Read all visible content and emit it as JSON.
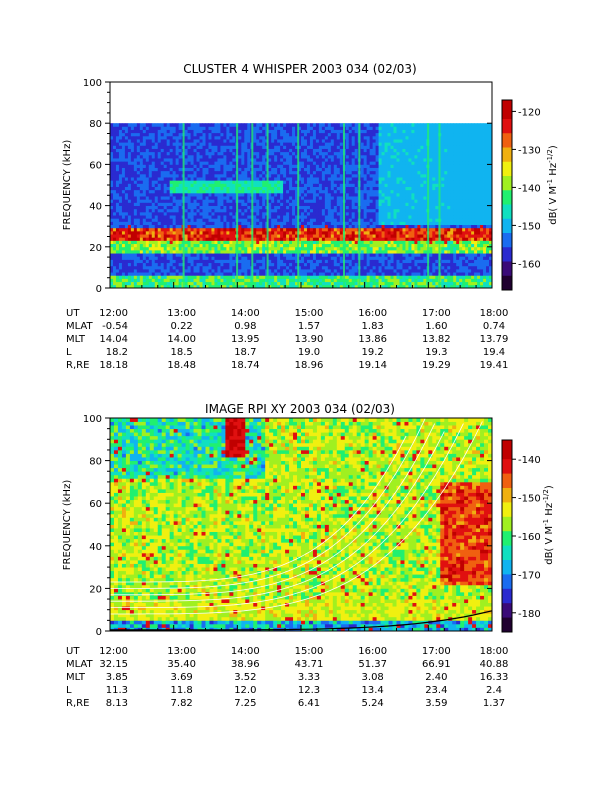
{
  "chart_data": [
    {
      "type": "heatmap",
      "title": "CLUSTER 4 WHISPER 2003 034 (02/03)",
      "ylabel": "FREQUENCY (kHz)",
      "colorbar_label": "dB( V M⁻¹ Hz⁻¹ᐟ²)",
      "colorbar_label_parts": [
        "dB( V M",
        "-1",
        " Hz",
        "-1/2",
        ")"
      ],
      "ylim": [
        0,
        100
      ],
      "y_ticks": [
        "0",
        "20",
        "40",
        "60",
        "80",
        "100"
      ],
      "data_max_frequency_khz": 80,
      "colorbar_ticks": [
        "-120",
        "-130",
        "-140",
        "-150",
        "-160"
      ],
      "colorbar_range": [
        -167,
        -117
      ],
      "features": {
        "plasma_line_khz": 26,
        "upper_band_khz": [
          48,
          52
        ]
      },
      "ephemeris_headers": [
        "UT",
        "MLAT",
        "MLT",
        "L",
        "R,RE"
      ],
      "ephemeris": {
        "UT": [
          "12:00",
          "13:00",
          "14:00",
          "15:00",
          "16:00",
          "17:00",
          "18:00"
        ],
        "MLAT": [
          "-0.54",
          "0.22",
          "0.98",
          "1.57",
          "1.83",
          "1.60",
          "0.74"
        ],
        "MLT": [
          "14.04",
          "14.00",
          "13.95",
          "13.90",
          "13.86",
          "13.82",
          "13.79"
        ],
        "L": [
          "18.2",
          "18.5",
          "18.7",
          "19.0",
          "19.2",
          "19.3",
          "19.4"
        ],
        "R,RE": [
          "18.18",
          "18.48",
          "18.74",
          "18.96",
          "19.14",
          "19.29",
          "19.41"
        ]
      },
      "first_row_prefixed": true
    },
    {
      "type": "heatmap",
      "title": "IMAGE RPI XY 2003 034 (02/03)",
      "ylabel": "FREQUENCY (kHz)",
      "colorbar_label_parts": [
        "dB( V M",
        "-1",
        " Hz",
        "-1/2",
        ")"
      ],
      "ylim": [
        0,
        100
      ],
      "y_ticks": [
        "0",
        "20",
        "40",
        "60",
        "80",
        "100"
      ],
      "data_max_frequency_khz": 100,
      "colorbar_ticks": [
        "-140",
        "-150",
        "-160",
        "-170",
        "-180"
      ],
      "colorbar_range": [
        -185,
        -135
      ],
      "overlay_curves": "white frequency curves rising toward 18:00",
      "ephemeris_headers": [
        "UT",
        "MLAT",
        "MLT",
        "L",
        "R,RE"
      ],
      "ephemeris": {
        "UT": [
          "12:00",
          "13:00",
          "14:00",
          "15:00",
          "16:00",
          "17:00",
          "18:00"
        ],
        "MLAT": [
          "32.15",
          "35.40",
          "38.96",
          "43.71",
          "51.37",
          "66.91",
          "40.88"
        ],
        "MLT": [
          "3.85",
          "3.69",
          "3.52",
          "3.33",
          "3.08",
          "2.40",
          "16.33"
        ],
        "L": [
          "11.3",
          "11.8",
          "12.0",
          "12.3",
          "13.4",
          "23.4",
          "2.4"
        ],
        "R,RE": [
          "8.13",
          "7.82",
          "7.25",
          "6.41",
          "5.24",
          "3.59",
          "1.37"
        ]
      },
      "first_row_prefixed": true
    }
  ],
  "colors": {
    "palette": [
      "#200030",
      "#3a0a78",
      "#2a2ad0",
      "#1a6cf0",
      "#10b4f0",
      "#10e0c0",
      "#20f070",
      "#a0f020",
      "#f0f010",
      "#f0b010",
      "#f06010",
      "#e01010",
      "#c00000"
    ]
  }
}
